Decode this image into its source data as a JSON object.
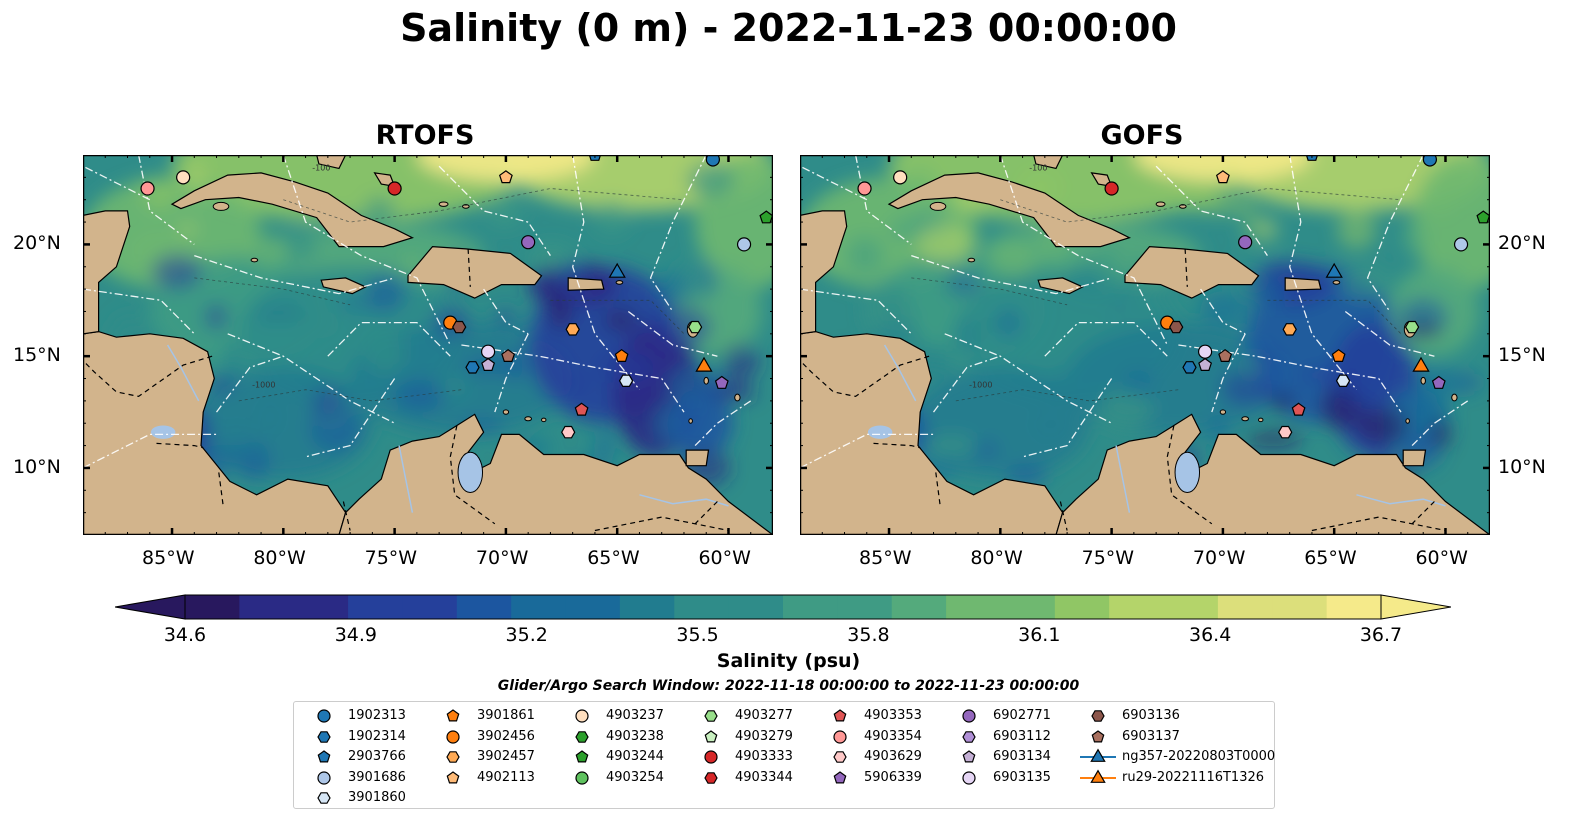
{
  "title": "Salinity (0 m) - 2022-11-23 00:00:00",
  "panels": [
    {
      "title": "RTOFS",
      "variant": "rtofs"
    },
    {
      "title": "GOFS",
      "variant": "gofs"
    }
  ],
  "map": {
    "lon_range": [
      -89,
      -58
    ],
    "lat_range": [
      7,
      24
    ],
    "lon_ticks": [
      {
        "v": -85,
        "label": "85°W"
      },
      {
        "v": -80,
        "label": "80°W"
      },
      {
        "v": -75,
        "label": "75°W"
      },
      {
        "v": -70,
        "label": "70°W"
      },
      {
        "v": -65,
        "label": "65°W"
      },
      {
        "v": -60,
        "label": "60°W"
      }
    ],
    "lat_ticks": [
      {
        "v": 20,
        "label": "20°N"
      },
      {
        "v": 15,
        "label": "15°N"
      },
      {
        "v": 10,
        "label": "10°N"
      }
    ],
    "contour_labels": [
      "-100",
      "-1000"
    ]
  },
  "colors": {
    "land": "#d2b48c",
    "ocean_deep": "#2a1d6e",
    "water_body": "#a6c4e6",
    "colormap": [
      "#28185e",
      "#2a2a85",
      "#25409b",
      "#1c56a0",
      "#196a9a",
      "#217c8f",
      "#2f8c89",
      "#3f9b84",
      "#54aa7c",
      "#6fb870",
      "#90c665",
      "#b4d46a",
      "#dcdf7b",
      "#f5ea8a"
    ]
  },
  "colorbar": {
    "min": 34.6,
    "max": 36.7,
    "ticks": [
      "34.6",
      "34.9",
      "35.2",
      "35.5",
      "35.8",
      "36.1",
      "36.4",
      "36.7"
    ],
    "label": "Salinity (psu)"
  },
  "search_window": "Glider/Argo Search Window: 2022-11-18 00:00:00 to 2022-11-23 00:00:00",
  "legend": [
    {
      "id": "1902313",
      "shape": "circle",
      "color": "#1f77b4"
    },
    {
      "id": "1902314",
      "shape": "hexagon",
      "color": "#1f77b4"
    },
    {
      "id": "2903766",
      "shape": "pentagon",
      "color": "#1f77b4"
    },
    {
      "id": "3901686",
      "shape": "circle",
      "color": "#aec7e8"
    },
    {
      "id": "3901860",
      "shape": "hexagon",
      "color": "#d6e6f5"
    },
    {
      "id": "3901861",
      "shape": "pentagon",
      "color": "#ff7f0e"
    },
    {
      "id": "3902456",
      "shape": "circle",
      "color": "#ff7f0e"
    },
    {
      "id": "3902457",
      "shape": "hexagon",
      "color": "#ffaa55"
    },
    {
      "id": "4902113",
      "shape": "pentagon",
      "color": "#ffbb78"
    },
    {
      "id": "4903237",
      "shape": "circle",
      "color": "#ffdfbf"
    },
    {
      "id": "4903238",
      "shape": "hexagon",
      "color": "#2ca02c"
    },
    {
      "id": "4903244",
      "shape": "pentagon",
      "color": "#2ca02c"
    },
    {
      "id": "4903254",
      "shape": "circle",
      "color": "#5fc25f"
    },
    {
      "id": "4903277",
      "shape": "hexagon",
      "color": "#98df8a"
    },
    {
      "id": "4903279",
      "shape": "pentagon",
      "color": "#c9f0c0"
    },
    {
      "id": "4903333",
      "shape": "circle",
      "color": "#d62728"
    },
    {
      "id": "4903344",
      "shape": "hexagon",
      "color": "#d62728"
    },
    {
      "id": "4903353",
      "shape": "pentagon",
      "color": "#e05555"
    },
    {
      "id": "4903354",
      "shape": "circle",
      "color": "#ff9896"
    },
    {
      "id": "4903629",
      "shape": "hexagon",
      "color": "#ffc9c8"
    },
    {
      "id": "5906339",
      "shape": "pentagon",
      "color": "#9467bd"
    },
    {
      "id": "6902771",
      "shape": "circle",
      "color": "#9467bd"
    },
    {
      "id": "6903112",
      "shape": "hexagon",
      "color": "#b08fd6"
    },
    {
      "id": "6903134",
      "shape": "pentagon",
      "color": "#c5b0d5"
    },
    {
      "id": "6903135",
      "shape": "circle",
      "color": "#e6d6f5"
    },
    {
      "id": "6903136",
      "shape": "hexagon",
      "color": "#8c564b"
    },
    {
      "id": "6903137",
      "shape": "pentagon",
      "color": "#a9705f"
    },
    {
      "id": "ng357-20220803T0000",
      "shape": "triangle-line",
      "color": "#1f77b4"
    },
    {
      "id": "ru29-20221116T1326",
      "shape": "triangle-line",
      "color": "#ff7f0e"
    }
  ],
  "floats": [
    {
      "id": "4903354",
      "lon": -86.1,
      "lat": 22.5
    },
    {
      "id": "4903237",
      "lon": -84.5,
      "lat": 23.0
    },
    {
      "id": "4903333",
      "lon": -75.0,
      "lat": 22.5
    },
    {
      "id": "4902113",
      "lon": -70.0,
      "lat": 23.0
    },
    {
      "id": "2903766",
      "lon": -66.0,
      "lat": 24.0
    },
    {
      "id": "1902313",
      "lon": -60.7,
      "lat": 23.8
    },
    {
      "id": "4903244",
      "lon": -58.3,
      "lat": 21.2
    },
    {
      "id": "6902771",
      "lon": -69.0,
      "lat": 20.1
    },
    {
      "id": "3901686",
      "lon": -59.3,
      "lat": 20.0
    },
    {
      "id": "3902456",
      "lon": -72.5,
      "lat": 16.5
    },
    {
      "id": "6903136",
      "lon": -72.1,
      "lat": 16.3
    },
    {
      "id": "3902457",
      "lon": -67.0,
      "lat": 16.2
    },
    {
      "id": "4903277",
      "lon": -61.5,
      "lat": 16.3
    },
    {
      "id": "6903135",
      "lon": -70.8,
      "lat": 15.2
    },
    {
      "id": "6903137",
      "lon": -69.9,
      "lat": 15.0
    },
    {
      "id": "1902314",
      "lon": -71.5,
      "lat": 14.5
    },
    {
      "id": "6903134",
      "lon": -70.8,
      "lat": 14.6
    },
    {
      "id": "3901861",
      "lon": -64.8,
      "lat": 15.0
    },
    {
      "id": "3901860",
      "lon": -64.6,
      "lat": 13.9
    },
    {
      "id": "5906339",
      "lon": -60.3,
      "lat": 13.8
    },
    {
      "id": "4903353",
      "lon": -66.6,
      "lat": 12.6
    },
    {
      "id": "4903629",
      "lon": -67.2,
      "lat": 11.6
    }
  ],
  "gliders": [
    {
      "id": "ng357-20220803T0000",
      "lon": -65.0,
      "lat": 18.8
    },
    {
      "id": "ru29-20221116T1326",
      "lon": -61.1,
      "lat": 14.6
    }
  ]
}
